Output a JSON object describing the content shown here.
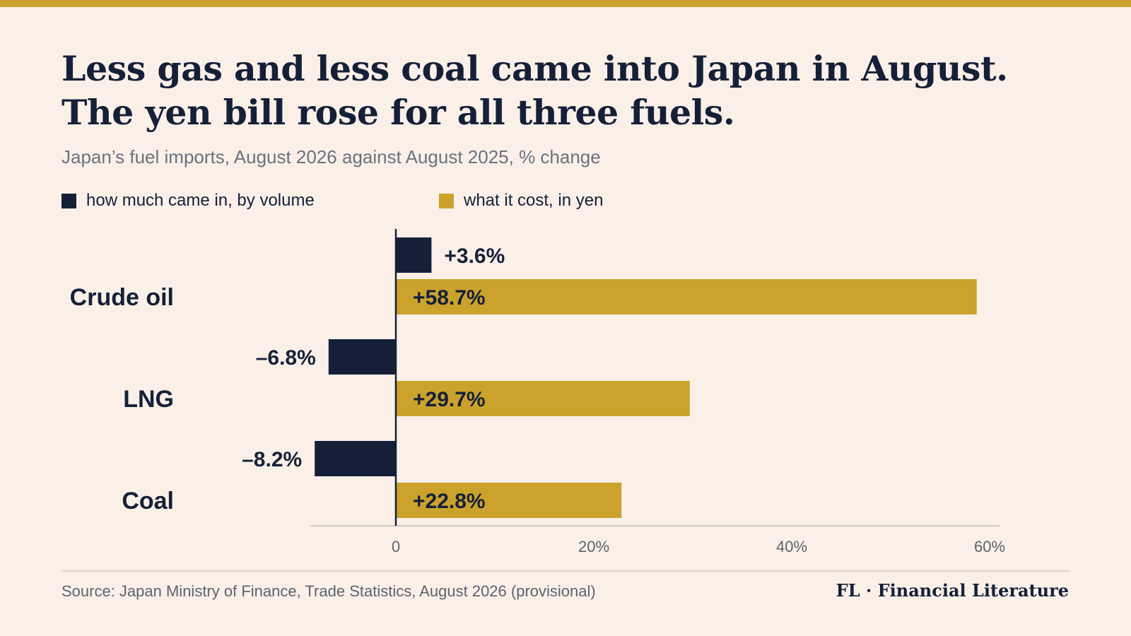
{
  "header": {
    "title_line1": "Less gas and less coal came into Japan in August.",
    "title_line2": "The yen bill rose for all three fuels.",
    "subtitle": "Japan’s fuel imports, August 2026 against August 2025, % change"
  },
  "colors": {
    "background": "#faf0e8",
    "accent": "#cba22c",
    "volume": "#152038",
    "yen": "#cba22c",
    "axis": "#152038",
    "baseline": "#cfc9c2"
  },
  "chart_data": {
    "type": "bar",
    "orientation": "horizontal",
    "categories": [
      "Crude oil",
      "LNG",
      "Coal"
    ],
    "series": [
      {
        "name": "how much came in, by volume",
        "values": [
          3.6,
          -6.8,
          -8.2
        ],
        "labels": [
          "+3.6%",
          "–6.8%",
          "–8.2%"
        ]
      },
      {
        "name": "what it cost, in yen",
        "values": [
          58.7,
          29.7,
          22.8
        ],
        "labels": [
          "+58.7%",
          "+29.7%",
          "+22.8%"
        ]
      }
    ],
    "xlim": [
      -8.6,
      61
    ],
    "xticks": [
      0,
      20,
      40,
      60
    ],
    "xtick_labels": [
      "0",
      "20%",
      "40%",
      "60%"
    ],
    "grid": false,
    "legend_position": "top-left"
  },
  "footer": {
    "source": "Source: Japan Ministry of Finance, Trade Statistics, August 2026 (provisional)",
    "brand": "FL · Financial Literature"
  }
}
